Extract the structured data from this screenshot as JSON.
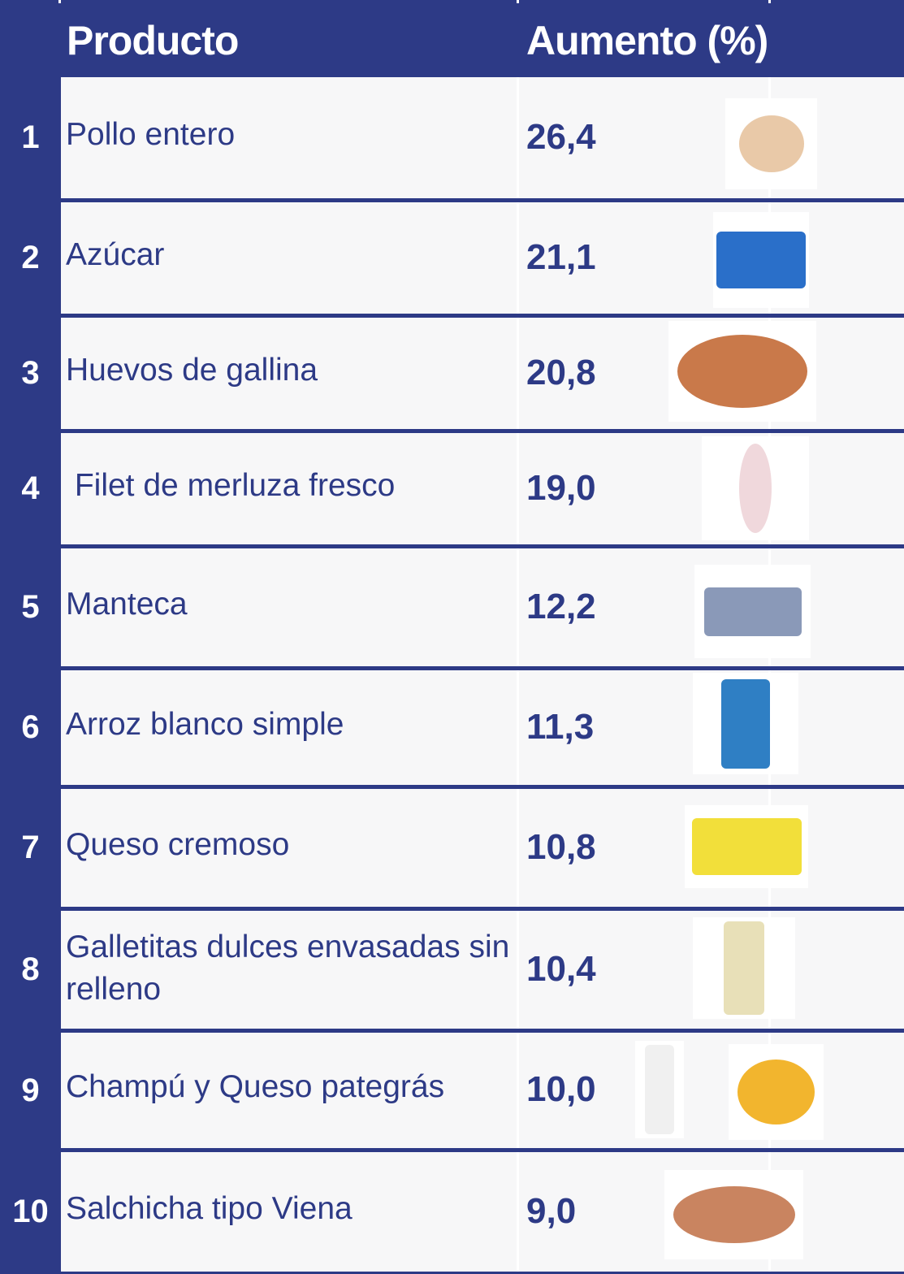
{
  "header": {
    "product": "Producto",
    "increase": "Aumento (%)"
  },
  "colors": {
    "navy": "#2d3a86",
    "row_bg": "#f7f7f8"
  },
  "rows": [
    {
      "rank": "1",
      "product": "Pollo entero",
      "increase": "26,4",
      "images": [
        "whole-chicken"
      ]
    },
    {
      "rank": "2",
      "product": "Azúcar",
      "increase": "21,1",
      "images": [
        "sugar-package"
      ]
    },
    {
      "rank": "3",
      "product": "Huevos de gallina",
      "increase": "20,8",
      "images": [
        "eggs"
      ]
    },
    {
      "rank": "4",
      "product": " Filet de merluza fresco",
      "increase": "19,0",
      "images": [
        "hake-fillet"
      ]
    },
    {
      "rank": "5",
      "product": "Manteca",
      "increase": "12,2",
      "images": [
        "butter-package"
      ]
    },
    {
      "rank": "6",
      "product": "Arroz blanco simple",
      "increase": "11,3",
      "images": [
        "rice-bag"
      ]
    },
    {
      "rank": "7",
      "product": "Queso cremoso",
      "increase": "10,8",
      "images": [
        "cream-cheese"
      ]
    },
    {
      "rank": "8",
      "product": "Galletitas dulces envasadas sin relleno",
      "increase": "10,4",
      "images": [
        "crackers-package"
      ]
    },
    {
      "rank": "9",
      "product": "Champú y Queso pategrás",
      "increase": "10,0",
      "images": [
        "shampoo-bottle",
        "pategras-cheese"
      ]
    },
    {
      "rank": "10",
      "product": "Salchicha tipo Viena",
      "increase": "9,0",
      "images": [
        "sausages"
      ]
    }
  ]
}
